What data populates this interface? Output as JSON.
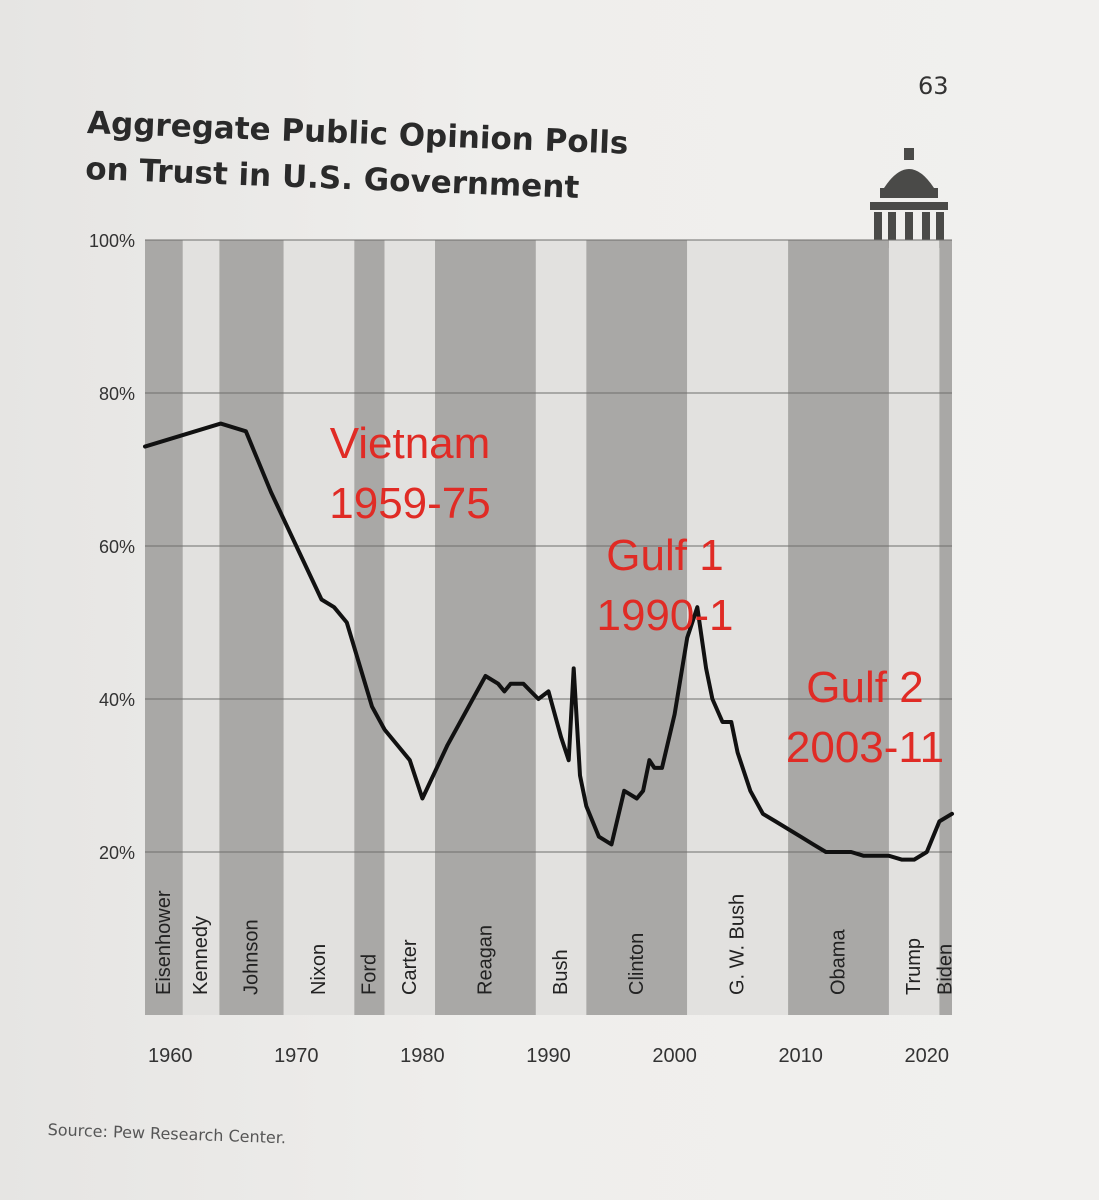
{
  "page": {
    "number": "63",
    "source": "Source: Pew Research Center."
  },
  "chart_data": {
    "type": "line",
    "title": "Aggregate Public Opinion Polls on Trust in U.S. Government",
    "title_lines": [
      "Aggregate Public Opinion Polls",
      "on Trust in U.S. Government"
    ],
    "xlim": [
      1958,
      2022
    ],
    "ylim": [
      0,
      100
    ],
    "x_ticks": [
      {
        "value": 1960,
        "label": "1960"
      },
      {
        "value": 1970,
        "label": "1970"
      },
      {
        "value": 1980,
        "label": "1980"
      },
      {
        "value": 1990,
        "label": "1990"
      },
      {
        "value": 2000,
        "label": "2000"
      },
      {
        "value": 2010,
        "label": "2010"
      },
      {
        "value": 2020,
        "label": "2020"
      }
    ],
    "y_ticks": [
      {
        "value": 20,
        "label": "20%"
      },
      {
        "value": 40,
        "label": "40%"
      },
      {
        "value": 60,
        "label": "60%"
      },
      {
        "value": 80,
        "label": "80%"
      },
      {
        "value": 100,
        "label": "100%"
      }
    ],
    "grid": "horizontal",
    "presidents": [
      {
        "name": "Eisenhower",
        "start": 1958.0,
        "end": 1961.0,
        "shaded": true
      },
      {
        "name": "Kennedy",
        "start": 1961.0,
        "end": 1963.9,
        "shaded": false
      },
      {
        "name": "Johnson",
        "start": 1963.9,
        "end": 1969.0,
        "shaded": true
      },
      {
        "name": "Nixon",
        "start": 1969.0,
        "end": 1974.6,
        "shaded": false
      },
      {
        "name": "Ford",
        "start": 1974.6,
        "end": 1977.0,
        "shaded": true
      },
      {
        "name": "Carter",
        "start": 1977.0,
        "end": 1981.0,
        "shaded": false
      },
      {
        "name": "Reagan",
        "start": 1981.0,
        "end": 1989.0,
        "shaded": true
      },
      {
        "name": "Bush",
        "start": 1989.0,
        "end": 1993.0,
        "shaded": false
      },
      {
        "name": "Clinton",
        "start": 1993.0,
        "end": 2001.0,
        "shaded": true
      },
      {
        "name": "G. W. Bush",
        "start": 2001.0,
        "end": 2009.0,
        "shaded": false
      },
      {
        "name": "Obama",
        "start": 2009.0,
        "end": 2017.0,
        "shaded": true
      },
      {
        "name": "Trump",
        "start": 2017.0,
        "end": 2021.0,
        "shaded": false
      },
      {
        "name": "Biden",
        "start": 2021.0,
        "end": 2022.0,
        "shaded": true
      }
    ],
    "series": [
      {
        "x": [
          1958,
          1964,
          1966,
          1968,
          1970,
          1972,
          1973,
          1974,
          1976,
          1977,
          1978,
          1979,
          1980,
          1982,
          1984,
          1985,
          1986,
          1986.5,
          1987,
          1988,
          1988.6,
          1989.2,
          1990,
          1991,
          1991.6,
          1992,
          1992.5,
          1993,
          1994,
          1995,
          1996,
          1997,
          1997.5,
          1998,
          1998.4,
          1999,
          2000,
          2001,
          2001.8,
          2002.5,
          2003,
          2003.8,
          2004.5,
          2005,
          2006,
          2007,
          2008,
          2010,
          2011,
          2012,
          2013,
          2014,
          2015,
          2016,
          2017,
          2018,
          2019,
          2020,
          2021,
          2022
        ],
        "y": [
          73,
          76,
          75,
          67,
          60,
          53,
          52,
          50,
          39,
          36,
          34,
          32,
          27,
          34,
          40,
          43,
          42,
          41,
          42,
          42,
          41,
          40,
          41,
          35,
          32,
          44,
          30,
          26,
          22,
          21,
          28,
          27,
          28,
          32,
          31,
          31,
          38,
          48,
          52,
          44,
          40,
          37,
          37,
          33,
          28,
          25,
          24,
          22,
          21,
          20,
          20,
          20,
          19.5,
          19.5,
          19.5,
          19,
          19,
          20,
          24,
          25
        ]
      }
    ],
    "annotations": [
      {
        "lines": [
          "Vietnam",
          "1959-75"
        ],
        "color": "#e02b25"
      },
      {
        "lines": [
          "Gulf 1",
          "1990-1"
        ],
        "color": "#e02b25"
      },
      {
        "lines": [
          "Gulf 2",
          "2003-11"
        ],
        "color": "#e02b25"
      }
    ]
  },
  "colors": {
    "shade": "#a9a8a6",
    "unshaded": "#e2e1df",
    "line": "#111111",
    "annotation": "#e02b25",
    "grid": "#6f6e6c"
  }
}
